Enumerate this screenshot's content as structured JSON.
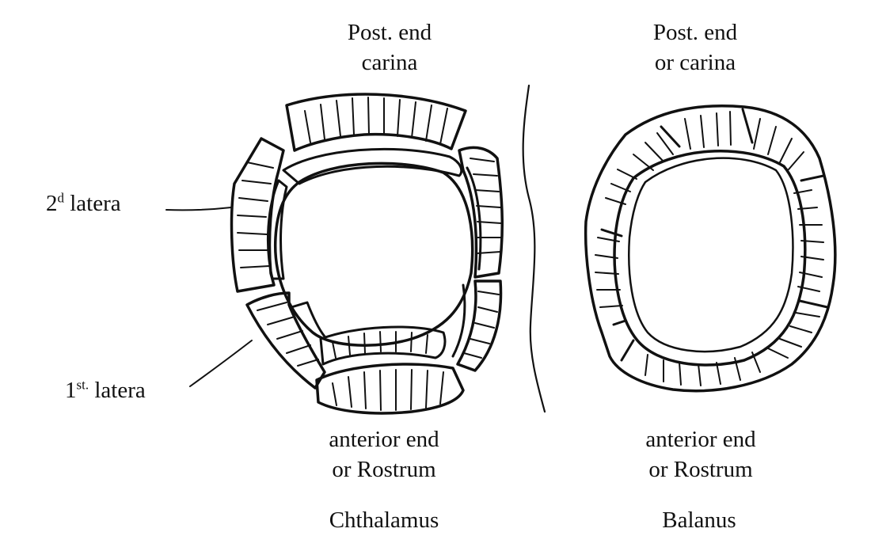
{
  "diagram": {
    "chthalamus": {
      "top_label_line1": "Post. end",
      "top_label_line2": "carina",
      "bottom_label_line1": "anterior end",
      "bottom_label_line2": "or Rostrum",
      "name": "Chthalamus",
      "second_latera": {
        "base": "2",
        "sup": "d",
        "word": "latera"
      },
      "first_latera": {
        "base": "1",
        "sup": "st.",
        "word": "latera"
      }
    },
    "balanus": {
      "top_label_line1": "Post. end",
      "top_label_line2": "or carina",
      "bottom_label_line1": "anterior end",
      "bottom_label_line2": "or Rostrum",
      "name": "Balanus"
    }
  },
  "colors": {
    "ink": "#111111",
    "paper": "#ffffff"
  }
}
